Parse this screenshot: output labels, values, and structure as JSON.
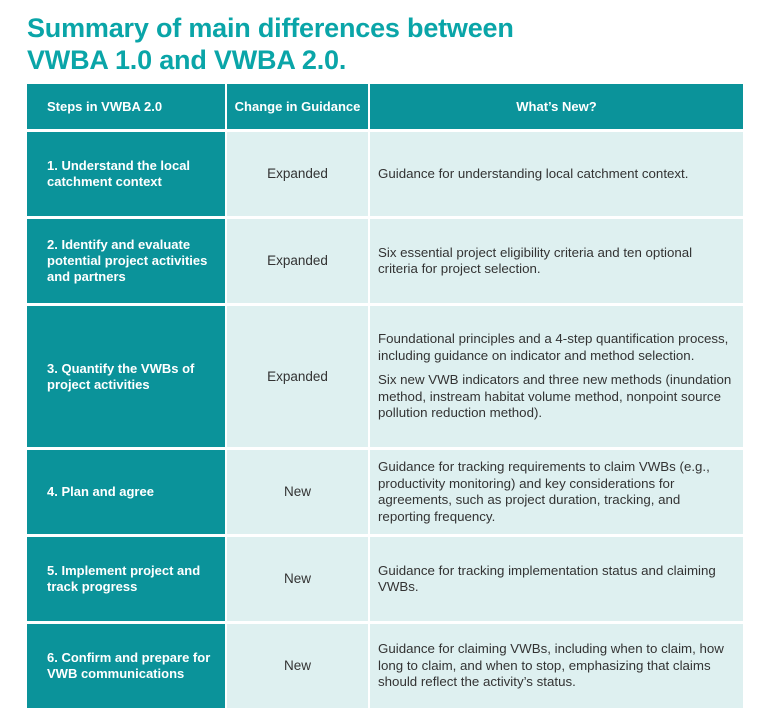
{
  "title": {
    "line1": "Summary of main differences between",
    "line2": "VWBA 1.0 and VWBA 2.0."
  },
  "table": {
    "headers": {
      "steps": "Steps in VWBA 2.0",
      "change": "Change in Guidance",
      "new": "What’s New?"
    },
    "rows": [
      {
        "step": "1. Understand the local catchment context",
        "change": "Expanded",
        "new": [
          "Guidance for understanding local catchment context."
        ]
      },
      {
        "step": "2. Identify and evaluate potential project activities and partners",
        "change": "Expanded",
        "new": [
          "Six essential project eligibility criteria and ten optional criteria for project selection."
        ]
      },
      {
        "step": "3. Quantify the VWBs of project activities",
        "change": "Expanded",
        "new": [
          "Foundational principles and a 4-step quantification process, including guidance on indicator and method selection.",
          "Six new VWB indicators and three new methods (inundation method, instream habitat volume method, nonpoint source pollution reduction method)."
        ]
      },
      {
        "step": "4. Plan and agree",
        "change": "New",
        "new": [
          "Guidance for tracking requirements to claim VWBs (e.g., productivity monitoring) and key considerations for agreements, such as project duration, tracking, and reporting frequency."
        ]
      },
      {
        "step": "5. Implement project and track progress",
        "change": "New",
        "new": [
          "Guidance for tracking implementation status and claiming VWBs."
        ]
      },
      {
        "step": "6. Confirm and prepare for VWB communications",
        "change": "New",
        "new": [
          "Guidance for claiming VWBs, including when to claim, how long to claim, and when to stop, emphasizing that claims should reflect the activity’s status."
        ]
      }
    ]
  }
}
